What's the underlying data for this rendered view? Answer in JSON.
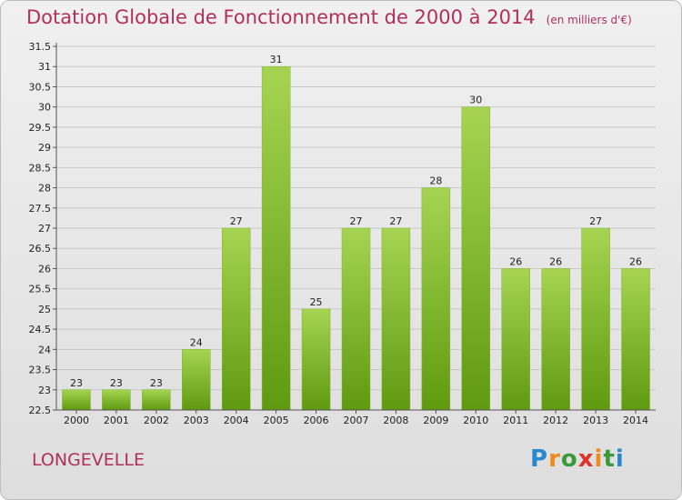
{
  "header": {
    "title": "Dotation Globale de Fonctionnement de 2000 à 2014",
    "subtitle": "(en milliers d'€)"
  },
  "footer": {
    "commune": "LONGEVELLE",
    "logo_text": "Proxiti"
  },
  "colors": {
    "title": "#b0305a",
    "bar_top": "#a6d452",
    "bar_bottom": "#5f9a10",
    "grid": "#c8c8c8",
    "axis": "#555555"
  },
  "chart_data": {
    "type": "bar",
    "title": "Dotation Globale de Fonctionnement de 2000 à 2014",
    "subtitle": "(en milliers d'€)",
    "xlabel": "",
    "ylabel": "",
    "categories": [
      "2000",
      "2001",
      "2002",
      "2003",
      "2004",
      "2005",
      "2006",
      "2007",
      "2008",
      "2009",
      "2010",
      "2011",
      "2012",
      "2013",
      "2014"
    ],
    "values": [
      23,
      23,
      23,
      24,
      27,
      31,
      25,
      27,
      27,
      28,
      30,
      26,
      26,
      27,
      26
    ],
    "ylim": [
      22.5,
      31.5
    ],
    "ytick_step": 0.5,
    "yticks": [
      "22.5",
      "23",
      "23.5",
      "24",
      "24.5",
      "25",
      "25.5",
      "26",
      "26.5",
      "27",
      "27.5",
      "28",
      "28.5",
      "29",
      "29.5",
      "30",
      "30.5",
      "31",
      "31.5"
    ],
    "grid": true,
    "legend": "none"
  }
}
